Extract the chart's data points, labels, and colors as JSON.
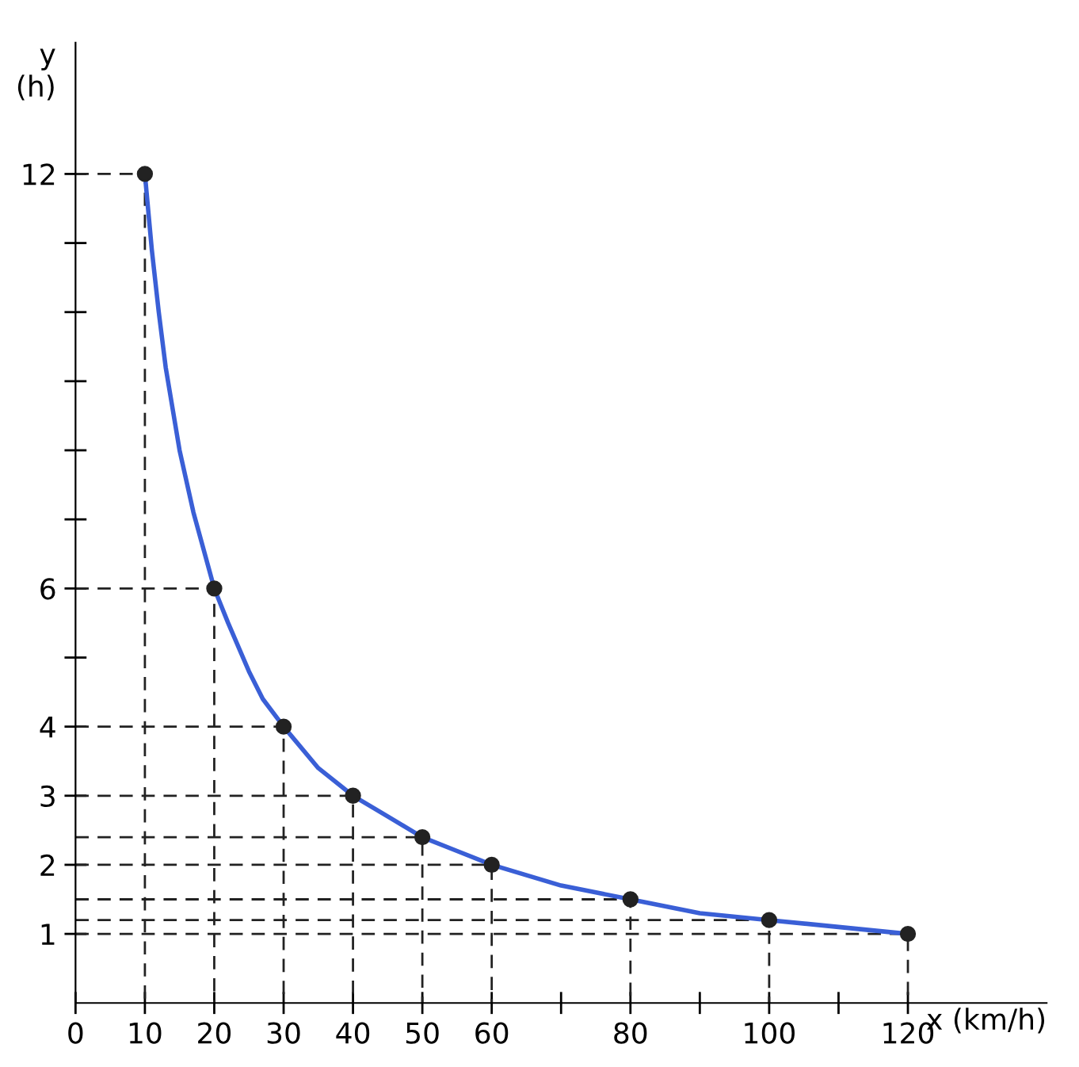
{
  "chart_data": {
    "type": "line",
    "xlabel": "x (km/h)",
    "ylabel": "y\n(h)",
    "x": [
      10,
      20,
      30,
      40,
      50,
      60,
      80,
      100,
      120
    ],
    "series": [
      {
        "color": "#3a5fd6",
        "x": [
          10,
          11,
          12,
          13,
          15,
          17,
          20,
          22,
          25,
          27,
          30,
          35,
          40,
          45,
          50,
          55,
          60,
          70,
          80,
          90,
          100,
          110,
          120
        ],
        "values": [
          12,
          10.9,
          10,
          9.2,
          8,
          7.1,
          6,
          5.5,
          4.8,
          4.4,
          4,
          3.4,
          3,
          2.7,
          2.4,
          2.2,
          2,
          1.7,
          1.5,
          1.3,
          1.2,
          1.1,
          1
        ],
        "marker": "none",
        "line_style": "solid"
      },
      {
        "type": "scatter",
        "color": "#222222",
        "values": [
          12,
          6,
          4,
          3,
          2.4,
          2,
          1.5,
          1.2,
          1
        ],
        "marker": "circle"
      },
      {
        "color": "#222222",
        "x": [
          0,
          10,
          10
        ],
        "values": [
          12,
          12,
          0
        ],
        "marker": "none",
        "line_style": "dashed"
      },
      {
        "color": "#222222",
        "x": [
          0,
          20,
          20
        ],
        "values": [
          6,
          6,
          0
        ],
        "marker": "none",
        "line_style": "dashed"
      },
      {
        "color": "#222222",
        "x": [
          0,
          30,
          30
        ],
        "values": [
          4,
          4,
          0
        ],
        "marker": "none",
        "line_style": "dashed"
      },
      {
        "color": "#222222",
        "x": [
          0,
          40,
          40
        ],
        "values": [
          3,
          3,
          0
        ],
        "marker": "none",
        "line_style": "dashed"
      },
      {
        "color": "#222222",
        "x": [
          0,
          50,
          50
        ],
        "values": [
          2.4,
          2.4,
          0
        ],
        "marker": "none",
        "line_style": "dashed"
      },
      {
        "color": "#222222",
        "x": [
          0,
          60,
          60
        ],
        "values": [
          2,
          2,
          0
        ],
        "marker": "none",
        "line_style": "dashed"
      },
      {
        "color": "#222222",
        "x": [
          0,
          80,
          80
        ],
        "values": [
          1.5,
          1.5,
          0
        ],
        "marker": "none",
        "line_style": "dashed"
      },
      {
        "color": "#222222",
        "x": [
          0,
          100,
          100
        ],
        "values": [
          1.2,
          1.2,
          0
        ],
        "marker": "none",
        "line_style": "dashed"
      },
      {
        "color": "#222222",
        "x": [
          0,
          120,
          120
        ],
        "values": [
          1,
          1,
          0
        ],
        "marker": "none",
        "line_style": "dashed"
      }
    ],
    "xlim": [
      0,
      140
    ],
    "ylim": [
      0,
      13.9
    ],
    "xticks": [
      0,
      10,
      20,
      30,
      40,
      50,
      60,
      {
        "value": 70,
        "label": null
      },
      80,
      {
        "value": 90,
        "label": null
      },
      100,
      {
        "value": 110,
        "label": null
      },
      120
    ],
    "yticks": [
      1,
      2,
      3,
      4,
      {
        "value": 5,
        "label": null
      },
      6,
      {
        "value": 7,
        "label": null
      },
      {
        "value": 8,
        "label": null
      },
      {
        "value": 9,
        "label": null
      },
      {
        "value": 10,
        "label": null
      },
      {
        "value": 11,
        "label": null
      },
      12
    ],
    "grid": false
  }
}
